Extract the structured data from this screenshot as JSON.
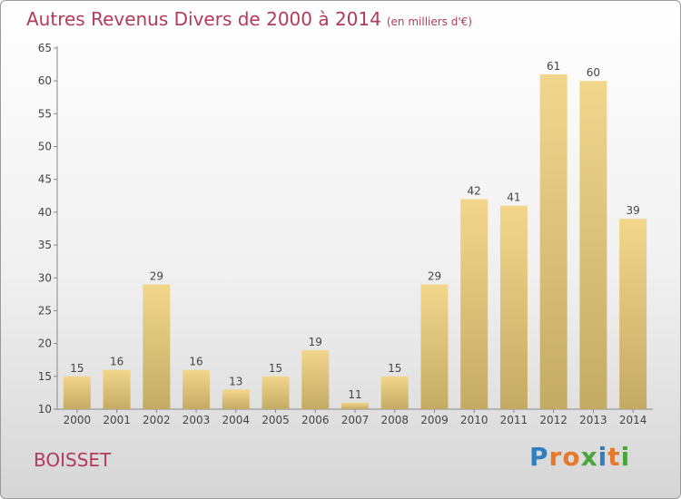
{
  "chart_data": {
    "type": "bar",
    "title": "Autres Revenus Divers de 2000 à 2014",
    "subtitle": "(en milliers d'€)",
    "xlabel": "",
    "ylabel": "",
    "categories": [
      "2000",
      "2001",
      "2002",
      "2003",
      "2004",
      "2005",
      "2006",
      "2007",
      "2008",
      "2009",
      "2010",
      "2011",
      "2012",
      "2013",
      "2014"
    ],
    "values": [
      15,
      16,
      29,
      16,
      13,
      15,
      19,
      11,
      15,
      29,
      42,
      41,
      61,
      60,
      39
    ],
    "ylim": [
      10,
      65
    ],
    "yticks": [
      10,
      15,
      20,
      25,
      30,
      35,
      40,
      45,
      50,
      55,
      60,
      65
    ],
    "grid": false,
    "bar_color": "#f2d68c",
    "bar_color_dark": "#c4ab64"
  },
  "footer": {
    "place": "BOISSET",
    "brand": "Proxiti",
    "brand_letters": [
      "P",
      "r",
      "o",
      "x",
      "i",
      "t",
      "i"
    ],
    "brand_colors": [
      "#2f7fc1",
      "#e8782a",
      "#e8782a",
      "#4aa63c",
      "#2f7fc1",
      "#e8782a",
      "#4aa63c"
    ]
  }
}
